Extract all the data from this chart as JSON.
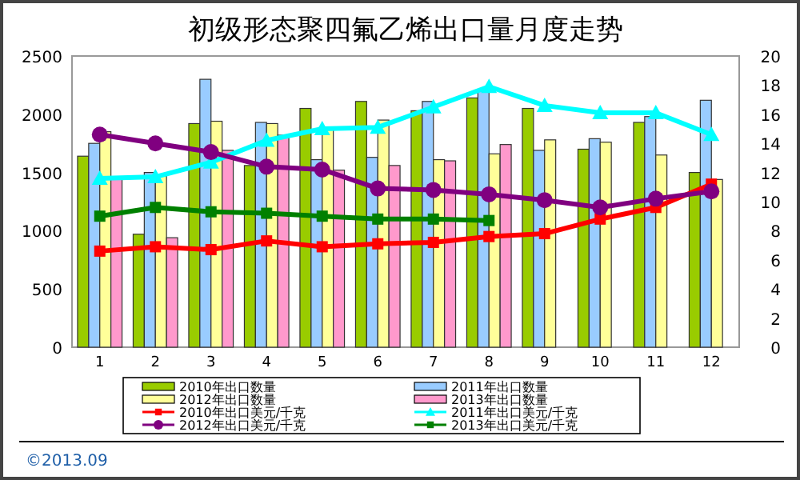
{
  "chart_data": {
    "type": "bar",
    "title": "初级形态聚四氟乙烯出口量月度走势",
    "categories": [
      "1",
      "2",
      "3",
      "4",
      "5",
      "6",
      "7",
      "8",
      "9",
      "10",
      "11",
      "12"
    ],
    "ylim": [
      0,
      2500
    ],
    "yticks": [
      0,
      500,
      1000,
      1500,
      2000,
      2500
    ],
    "y2lim": [
      0,
      20
    ],
    "y2ticks": [
      0,
      2,
      4,
      6,
      8,
      10,
      12,
      14,
      16,
      18,
      20
    ],
    "legend": "bottom",
    "grid": false,
    "series": [
      {
        "name": "2010年出口数量",
        "color": "#99cc00",
        "values": [
          1640,
          970,
          1920,
          1560,
          2050,
          2110,
          2030,
          2140,
          2050,
          1700,
          1930,
          1500
        ]
      },
      {
        "name": "2011年出口数量",
        "color": "#99ccff",
        "values": [
          1750,
          1500,
          2300,
          1930,
          1610,
          1630,
          2110,
          2200,
          1690,
          1790,
          1980,
          2120
        ]
      },
      {
        "name": "2012年出口数量",
        "color": "#ffff99",
        "values": [
          1850,
          1470,
          1940,
          1920,
          1870,
          1950,
          1610,
          1660,
          1780,
          1760,
          1650,
          1440
        ]
      },
      {
        "name": "2013年出口数量",
        "color": "#ff99cc",
        "values": [
          1450,
          940,
          1690,
          1820,
          1520,
          1560,
          1600,
          1740,
          null,
          null,
          null,
          null
        ]
      },
      {
        "name": "2010年出口美元/千克",
        "type": "line",
        "axis": "y2",
        "marker": "square",
        "color": "#ff0000",
        "values": [
          6.6,
          6.9,
          6.7,
          7.3,
          6.9,
          7.1,
          7.2,
          7.6,
          7.8,
          8.8,
          9.6,
          11.2
        ]
      },
      {
        "name": "2011年出口美元/千克",
        "type": "line",
        "axis": "y2",
        "marker": "triangle",
        "color": "#00ffff",
        "values": [
          11.6,
          11.7,
          12.7,
          14.2,
          15.0,
          15.1,
          16.5,
          17.9,
          16.6,
          16.1,
          16.1,
          14.6
        ]
      },
      {
        "name": "2012年出口美元/千克",
        "type": "line",
        "axis": "y2",
        "marker": "circle",
        "color": "#800080",
        "values": [
          14.6,
          14.0,
          13.4,
          12.4,
          12.2,
          10.9,
          10.8,
          10.5,
          10.1,
          9.6,
          10.2,
          10.7
        ]
      },
      {
        "name": "2013年出口美元/千克",
        "type": "line",
        "axis": "y2",
        "marker": "square",
        "color": "#008000",
        "values": [
          9.0,
          9.6,
          9.3,
          9.2,
          9.0,
          8.8,
          8.8,
          8.7,
          null,
          null,
          null,
          null
        ]
      }
    ],
    "annotations": [
      "©2013.09"
    ]
  }
}
